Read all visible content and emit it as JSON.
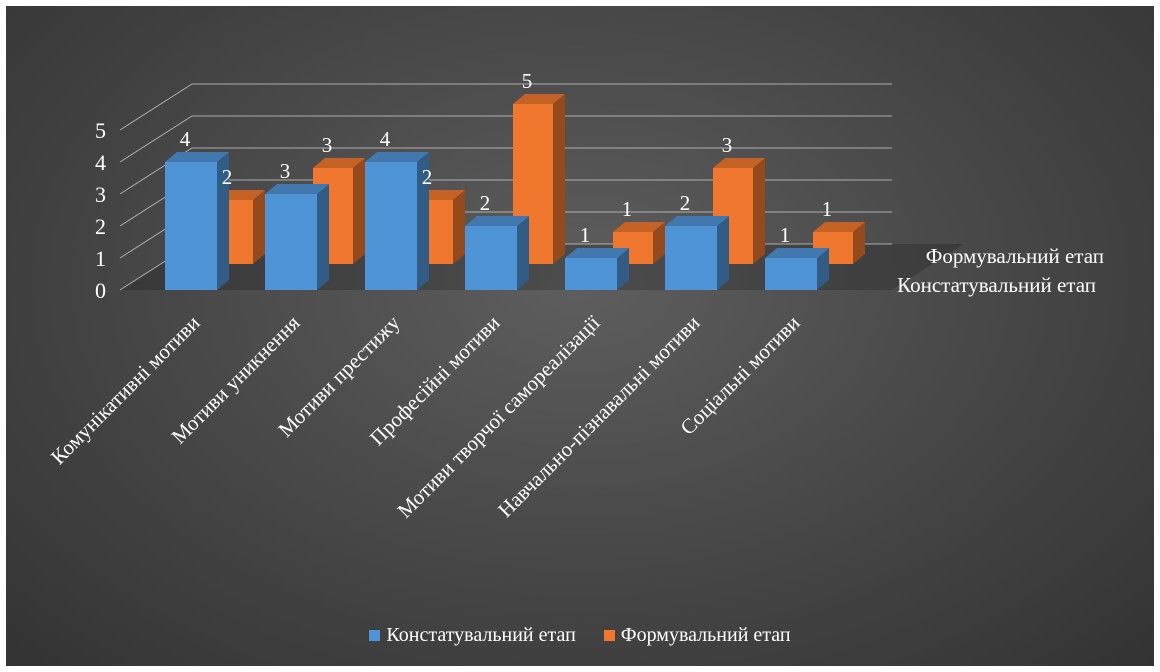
{
  "chart_data": {
    "type": "bar",
    "subtype": "3d-clustered-column",
    "categories": [
      "Комунікативні мотиви",
      "Мотиви уникнення",
      "Мотиви престижу",
      "Професійні мотиви",
      "Мотиви творчої самореалізації",
      "Навчально-пізнавальні мотиви",
      "Соціальні мотиви"
    ],
    "series": [
      {
        "name": "Констатувальний етап",
        "color": "#4f94d6",
        "values": [
          4,
          3,
          4,
          2,
          1,
          2,
          1
        ]
      },
      {
        "name": "Формувальний етап",
        "color": "#f0782e",
        "values": [
          2,
          3,
          2,
          5,
          1,
          3,
          1
        ]
      }
    ],
    "y_ticks": [
      "0",
      "1",
      "2",
      "3",
      "4",
      "5"
    ],
    "ylim": [
      0,
      5
    ],
    "grid": true,
    "legend_position": "bottom",
    "legend": [
      "Констатувальний етап",
      "Формувальний етап"
    ],
    "depth_axis_labels": [
      "Формувальний етап",
      "Констатувальний етап"
    ]
  }
}
